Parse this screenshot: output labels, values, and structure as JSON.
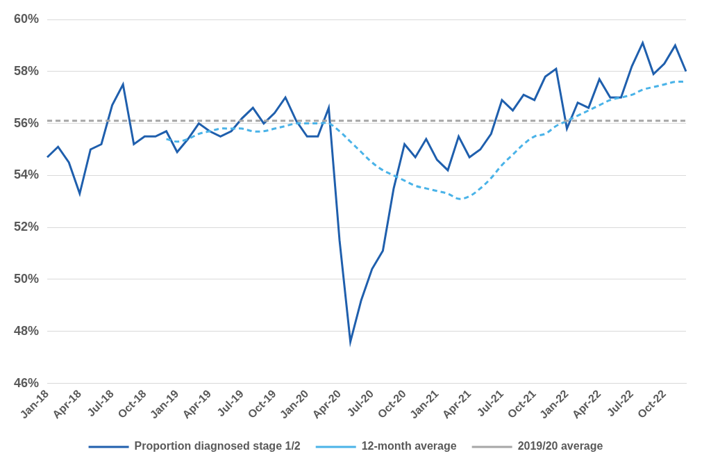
{
  "chart_data": {
    "type": "line",
    "categories": [
      "Jan-18",
      null,
      null,
      "Apr-18",
      null,
      null,
      "Jul-18",
      null,
      null,
      "Oct-18",
      null,
      null,
      "Jan-19",
      null,
      null,
      "Apr-19",
      null,
      null,
      "Jul-19",
      null,
      null,
      "Oct-19",
      null,
      null,
      "Jan-20",
      null,
      null,
      "Apr-20",
      null,
      null,
      "Jul-20",
      null,
      null,
      "Oct-20",
      null,
      null,
      "Jan-21",
      null,
      null,
      "Apr-21",
      null,
      null,
      "Jul-21",
      null,
      null,
      "Oct-21",
      null,
      null,
      "Jan-22",
      null,
      null,
      "Apr-22",
      null,
      null,
      "Jul-22",
      null,
      null,
      "Oct-22",
      null,
      null
    ],
    "series": [
      {
        "name": "Proportion diagnosed stage 1/2",
        "color": "#1f5fad",
        "line_style": "solid",
        "values": [
          54.7,
          55.1,
          54.5,
          53.3,
          55.0,
          55.2,
          56.7,
          57.5,
          55.2,
          55.5,
          55.5,
          55.7,
          54.9,
          55.4,
          56.0,
          55.7,
          55.5,
          55.7,
          56.2,
          56.6,
          56.0,
          56.4,
          57.0,
          56.1,
          55.5,
          55.5,
          56.6,
          51.5,
          47.6,
          49.2,
          50.4,
          51.1,
          53.5,
          55.2,
          54.7,
          55.4,
          54.6,
          54.2,
          55.5,
          54.7,
          55.0,
          55.6,
          56.9,
          56.5,
          57.1,
          56.9,
          57.8,
          58.1,
          55.8,
          56.8,
          56.6,
          57.7,
          57.0,
          57.0,
          58.2,
          59.1,
          57.9,
          58.3,
          59.0,
          58.0
        ]
      },
      {
        "name": "12-month average",
        "color": "#4ab3e8",
        "line_style": "dashed",
        "values": [
          null,
          null,
          null,
          null,
          null,
          null,
          null,
          null,
          null,
          null,
          null,
          55.4,
          55.3,
          55.4,
          55.6,
          55.7,
          55.8,
          55.8,
          55.8,
          55.7,
          55.7,
          55.8,
          55.9,
          56.0,
          56.0,
          56.0,
          56.0,
          55.7,
          55.3,
          54.9,
          54.5,
          54.2,
          54.0,
          53.8,
          53.6,
          53.5,
          53.4,
          53.3,
          53.1,
          53.2,
          53.5,
          53.9,
          54.4,
          54.8,
          55.2,
          55.5,
          55.6,
          55.9,
          56.1,
          56.3,
          56.5,
          56.7,
          56.9,
          57.0,
          57.1,
          57.3,
          57.4,
          57.5,
          57.6,
          57.6
        ]
      },
      {
        "name": "2019/20 average",
        "color": "#a6a6a6",
        "line_style": "dashed",
        "values": [
          56.1,
          56.1,
          56.1,
          56.1,
          56.1,
          56.1,
          56.1,
          56.1,
          56.1,
          56.1,
          56.1,
          56.1,
          56.1,
          56.1,
          56.1,
          56.1,
          56.1,
          56.1,
          56.1,
          56.1,
          56.1,
          56.1,
          56.1,
          56.1,
          56.1,
          56.1,
          56.1,
          56.1,
          56.1,
          56.1,
          56.1,
          56.1,
          56.1,
          56.1,
          56.1,
          56.1,
          56.1,
          56.1,
          56.1,
          56.1,
          56.1,
          56.1,
          56.1,
          56.1,
          56.1,
          56.1,
          56.1,
          56.1,
          56.1,
          56.1,
          56.1,
          56.1,
          56.1,
          56.1,
          56.1,
          56.1,
          56.1,
          56.1,
          56.1,
          56.1
        ]
      }
    ],
    "ylim": [
      46,
      60
    ],
    "yticks": [
      {
        "value": 46,
        "label": "46%"
      },
      {
        "value": 48,
        "label": "48%"
      },
      {
        "value": 50,
        "label": "50%"
      },
      {
        "value": 52,
        "label": "52%"
      },
      {
        "value": 54,
        "label": "54%"
      },
      {
        "value": 56,
        "label": "56%"
      },
      {
        "value": 58,
        "label": "58%"
      },
      {
        "value": 60,
        "label": "60%"
      }
    ],
    "grid": true,
    "legend": "bottom"
  }
}
